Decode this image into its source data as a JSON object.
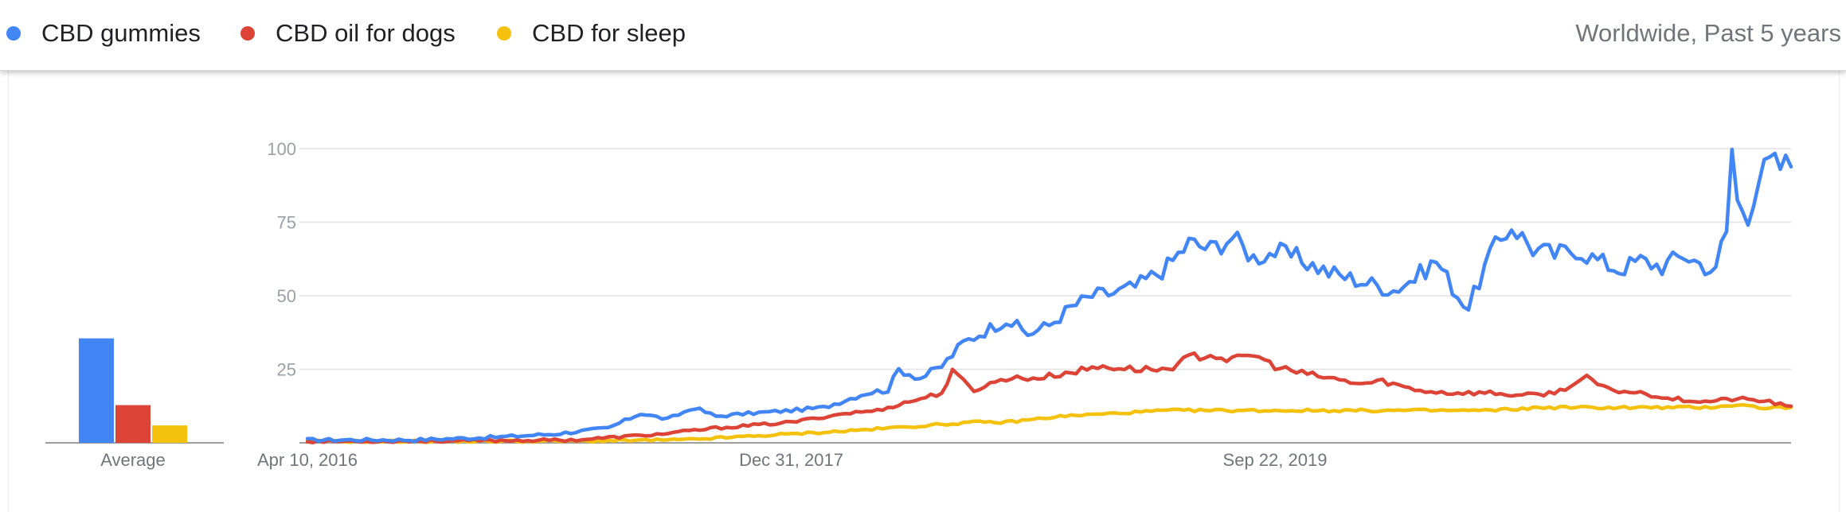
{
  "legend": {
    "items": [
      {
        "label": "CBD gummies",
        "color": "#4285f4"
      },
      {
        "label": "CBD oil for dogs",
        "color": "#db4437"
      },
      {
        "label": "CBD for sleep",
        "color": "#f4c20d"
      }
    ],
    "scope": "Worldwide, Past 5 years"
  },
  "chart_data": [
    {
      "type": "bar",
      "title": "",
      "categories": [
        "CBD gummies",
        "CBD oil for dogs",
        "CBD for sleep"
      ],
      "values": [
        36,
        13,
        6
      ],
      "xlabel": "Average",
      "ylim": [
        0,
        100
      ],
      "colors": [
        "#4285f4",
        "#db4437",
        "#f4c20d"
      ]
    },
    {
      "type": "line",
      "title": "",
      "xlabel": "",
      "ylabel": "",
      "ylim": [
        0,
        100
      ],
      "yticks": [
        25,
        50,
        75,
        100
      ],
      "xticks": [
        {
          "index": 0,
          "label": "Apr 10, 2016"
        },
        {
          "index": 90,
          "label": "Dec 31, 2017"
        },
        {
          "index": 180,
          "label": "Sep 22, 2019"
        }
      ],
      "x_start": "2016-04-10",
      "x_step_days": 7,
      "grid": true,
      "series": [
        {
          "name": "CBD gummies",
          "color": "#4285f4",
          "anchors": [
            [
              0,
              1
            ],
            [
              20,
              1
            ],
            [
              36,
              2
            ],
            [
              46,
              3
            ],
            [
              56,
              5
            ],
            [
              62,
              10
            ],
            [
              67,
              8
            ],
            [
              72,
              12
            ],
            [
              76,
              9
            ],
            [
              82,
              10
            ],
            [
              90,
              11
            ],
            [
              96,
              12
            ],
            [
              104,
              17
            ],
            [
              108,
              18
            ],
            [
              110,
              25
            ],
            [
              114,
              22
            ],
            [
              118,
              26
            ],
            [
              122,
              34
            ],
            [
              126,
              38
            ],
            [
              130,
              42
            ],
            [
              134,
              37
            ],
            [
              138,
              40
            ],
            [
              142,
              46
            ],
            [
              146,
              50
            ],
            [
              150,
              51
            ],
            [
              154,
              53
            ],
            [
              160,
              60
            ],
            [
              164,
              68
            ],
            [
              168,
              66
            ],
            [
              172,
              70
            ],
            [
              176,
              63
            ],
            [
              180,
              65
            ],
            [
              184,
              63
            ],
            [
              190,
              58
            ],
            [
              196,
              55
            ],
            [
              202,
              52
            ],
            [
              206,
              56
            ],
            [
              210,
              62
            ],
            [
              214,
              50
            ],
            [
              216,
              46
            ],
            [
              220,
              64
            ],
            [
              224,
              74
            ],
            [
              228,
              66
            ],
            [
              232,
              64
            ],
            [
              236,
              66
            ],
            [
              240,
              62
            ],
            [
              244,
              59
            ],
            [
              248,
              62
            ],
            [
              252,
              60
            ],
            [
              256,
              64
            ],
            [
              260,
              60
            ],
            [
              262,
              58
            ],
            [
              263,
              67
            ],
            [
              264,
              72
            ],
            [
              265,
              100
            ],
            [
              266,
              82
            ],
            [
              268,
              78
            ],
            [
              270,
              90
            ],
            [
              272,
              95
            ],
            [
              274,
              94
            ],
            [
              276,
              95
            ]
          ]
        },
        {
          "name": "CBD oil for dogs",
          "color": "#db4437",
          "anchors": [
            [
              0,
              0.5
            ],
            [
              30,
              0.7
            ],
            [
              50,
              1
            ],
            [
              66,
              3
            ],
            [
              76,
              5
            ],
            [
              90,
              7
            ],
            [
              100,
              10
            ],
            [
              106,
              11
            ],
            [
              112,
              14
            ],
            [
              118,
              17
            ],
            [
              120,
              24
            ],
            [
              124,
              18
            ],
            [
              130,
              22
            ],
            [
              136,
              22
            ],
            [
              142,
              24
            ],
            [
              148,
              26
            ],
            [
              154,
              25
            ],
            [
              160,
              25
            ],
            [
              164,
              29
            ],
            [
              168,
              30
            ],
            [
              172,
              28
            ],
            [
              176,
              30
            ],
            [
              180,
              26
            ],
            [
              184,
              24
            ],
            [
              190,
              22
            ],
            [
              196,
              20
            ],
            [
              200,
              21
            ],
            [
              206,
              18
            ],
            [
              212,
              17
            ],
            [
              220,
              17
            ],
            [
              226,
              16
            ],
            [
              232,
              17
            ],
            [
              238,
              22
            ],
            [
              242,
              18
            ],
            [
              248,
              17
            ],
            [
              254,
              15
            ],
            [
              260,
              14
            ],
            [
              266,
              15
            ],
            [
              272,
              14
            ],
            [
              276,
              12
            ]
          ]
        },
        {
          "name": "CBD for sleep",
          "color": "#f4c20d",
          "anchors": [
            [
              0,
              0.5
            ],
            [
              50,
              0.6
            ],
            [
              70,
              1
            ],
            [
              80,
              2
            ],
            [
              90,
              3
            ],
            [
              100,
              4
            ],
            [
              108,
              5
            ],
            [
              116,
              6
            ],
            [
              124,
              7
            ],
            [
              130,
              7
            ],
            [
              140,
              9
            ],
            [
              150,
              10
            ],
            [
              160,
              11
            ],
            [
              170,
              11
            ],
            [
              180,
              11
            ],
            [
              190,
              11
            ],
            [
              200,
              11
            ],
            [
              210,
              11
            ],
            [
              220,
              11
            ],
            [
              230,
              12
            ],
            [
              240,
              12
            ],
            [
              250,
              12
            ],
            [
              260,
              12
            ],
            [
              266,
              13
            ],
            [
              270,
              12
            ],
            [
              276,
              12
            ]
          ]
        }
      ]
    }
  ]
}
